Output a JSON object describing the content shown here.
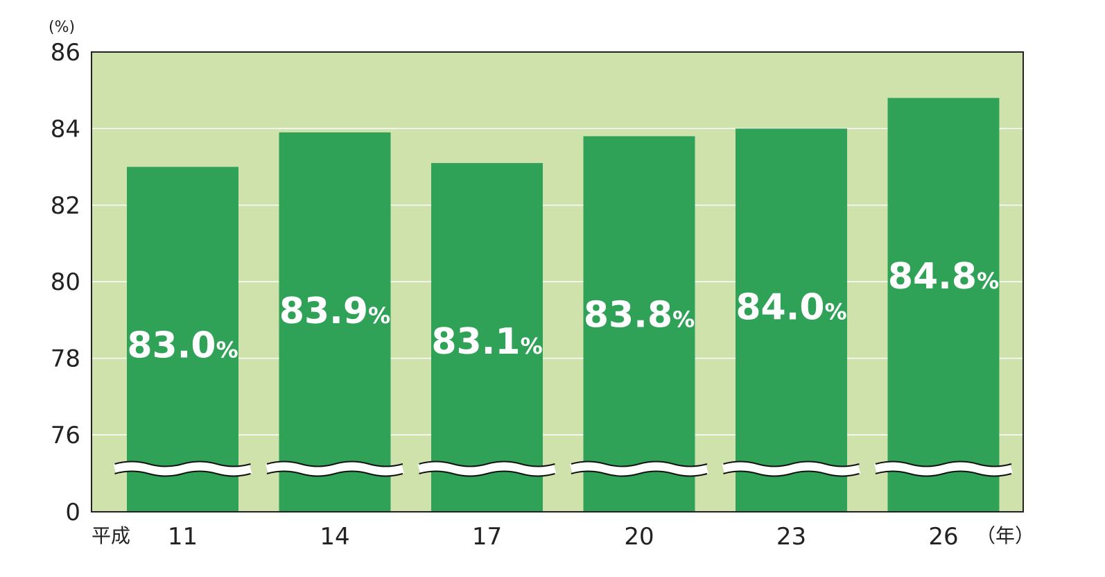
{
  "chart_data": {
    "type": "bar",
    "y_unit_label": "(%)",
    "x_prefix_label": "平成",
    "x_suffix_label": "（年）",
    "categories": [
      "11",
      "14",
      "17",
      "20",
      "23",
      "26"
    ],
    "values": [
      83.0,
      83.9,
      83.1,
      83.8,
      84.0,
      84.8
    ],
    "value_labels": [
      {
        "number": "83.0",
        "unit": "%"
      },
      {
        "number": "83.9",
        "unit": "%"
      },
      {
        "number": "83.1",
        "unit": "%"
      },
      {
        "number": "83.8",
        "unit": "%"
      },
      {
        "number": "84.0",
        "unit": "%"
      },
      {
        "number": "84.8",
        "unit": "%"
      }
    ],
    "y_ticks": [
      "0",
      "76",
      "78",
      "80",
      "82",
      "84",
      "86"
    ],
    "ylim": [
      76,
      86
    ],
    "axis_break": true,
    "grid": true,
    "colors": {
      "plot_background": "#cfe2ab",
      "bar": "#2fa257",
      "gridline": "#ffffff",
      "value_label": "#ffffff"
    }
  }
}
